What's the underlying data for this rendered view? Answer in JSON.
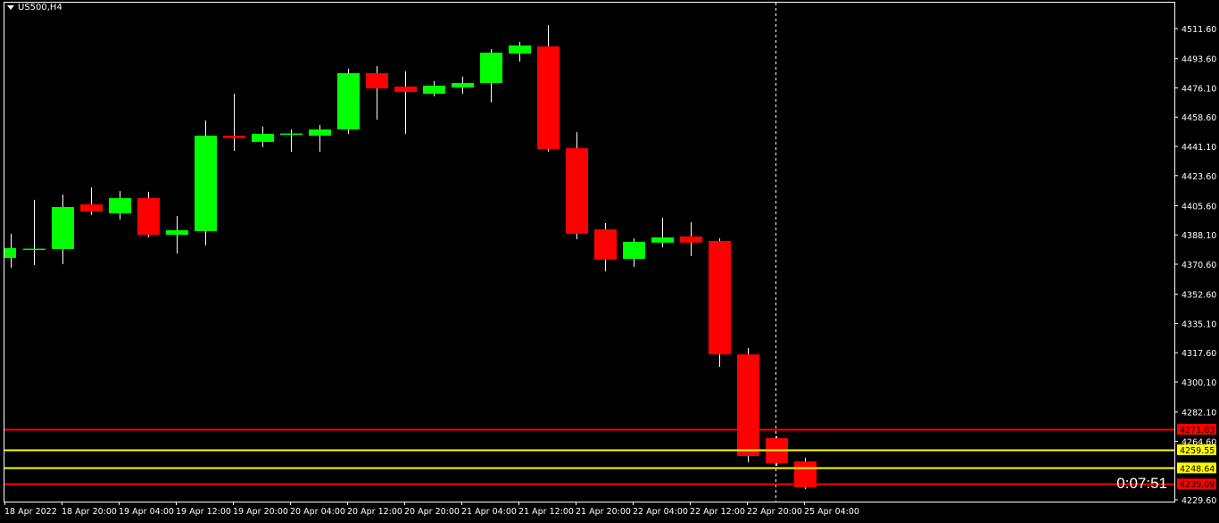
{
  "symbol_label": "US500,H4",
  "countdown": "0:07:51",
  "colors": {
    "bull": "#00ff00",
    "bear": "#ff0000",
    "background": "#000000",
    "axis": "#ffffff",
    "support": "#ffff00",
    "resistance": "#ff0000"
  },
  "chart_data": {
    "type": "candlestick",
    "ylim": [
      4229.6,
      4511.6
    ],
    "y_ticks": [
      "4511.60",
      "4493.60",
      "4476.10",
      "4458.60",
      "4441.10",
      "4423.60",
      "4405.60",
      "4388.10",
      "4370.60",
      "4352.60",
      "4335.10",
      "4317.60",
      "4300.10",
      "4282.10",
      "4264.60",
      "4229.60"
    ],
    "x_ticks": [
      "18 Apr 2022",
      "18 Apr 20:00",
      "19 Apr 04:00",
      "19 Apr 12:00",
      "19 Apr 20:00",
      "20 Apr 04:00",
      "20 Apr 12:00",
      "20 Apr 20:00",
      "21 Apr 04:00",
      "21 Apr 12:00",
      "21 Apr 20:00",
      "22 Apr 04:00",
      "22 Apr 12:00",
      "22 Apr 20:00",
      "25 Apr 04:00"
    ],
    "candles": [
      [
        4374.3,
        4388.8,
        4368.5,
        4380.2
      ],
      [
        4379.7,
        4409.1,
        4370.1,
        4379.9
      ],
      [
        4379.7,
        4412.3,
        4370.6,
        4404.8
      ],
      [
        4406.4,
        4416.5,
        4400.0,
        4402.1
      ],
      [
        4401.0,
        4414.4,
        4397.3,
        4410.1
      ],
      [
        4410.1,
        4413.9,
        4386.6,
        4388.2
      ],
      [
        4388.2,
        4399.4,
        4377.0,
        4390.9
      ],
      [
        4390.4,
        4456.6,
        4381.8,
        4447.5
      ],
      [
        4447.5,
        4472.6,
        4438.4,
        4446.0
      ],
      [
        4443.8,
        4452.9,
        4440.6,
        4448.6
      ],
      [
        4448.6,
        4451.2,
        4437.9,
        4448.8
      ],
      [
        4447.5,
        4453.9,
        4437.9,
        4451.2
      ],
      [
        4451.2,
        4487.6,
        4448.6,
        4484.9
      ],
      [
        4484.9,
        4489.2,
        4457.1,
        4475.8
      ],
      [
        4476.9,
        4486.0,
        4448.6,
        4473.7
      ],
      [
        4472.6,
        4480.1,
        4471.0,
        4477.4
      ],
      [
        4476.3,
        4482.8,
        4472.6,
        4479.0
      ],
      [
        4479.0,
        4499.3,
        4467.5,
        4497.2
      ],
      [
        4496.6,
        4503.6,
        4491.8,
        4501.5
      ],
      [
        4500.9,
        4513.7,
        4438.0,
        4439.5
      ],
      [
        4440.0,
        4449.6,
        4385.5,
        4388.8
      ],
      [
        4391.4,
        4395.2,
        4366.3,
        4373.3
      ],
      [
        4373.8,
        4386.0,
        4369.0,
        4384.0
      ],
      [
        4383.5,
        4398.4,
        4380.7,
        4386.6
      ],
      [
        4387.2,
        4395.7,
        4375.5,
        4383.5
      ],
      [
        4384.5,
        4386.0,
        4309.2,
        4316.6
      ],
      [
        4316.6,
        4320.4,
        4252.1,
        4255.8
      ],
      [
        4266.5,
        4267.6,
        4249.9,
        4251.5
      ],
      [
        4252.6,
        4254.7,
        4236.0,
        4237.1
      ]
    ],
    "levels": [
      {
        "price": "4271.83",
        "kind": "resistance"
      },
      {
        "price": "4259.55",
        "kind": "support"
      },
      {
        "price": "4248.64",
        "kind": "support"
      },
      {
        "price": "4239.09",
        "kind": "resistance"
      }
    ]
  }
}
